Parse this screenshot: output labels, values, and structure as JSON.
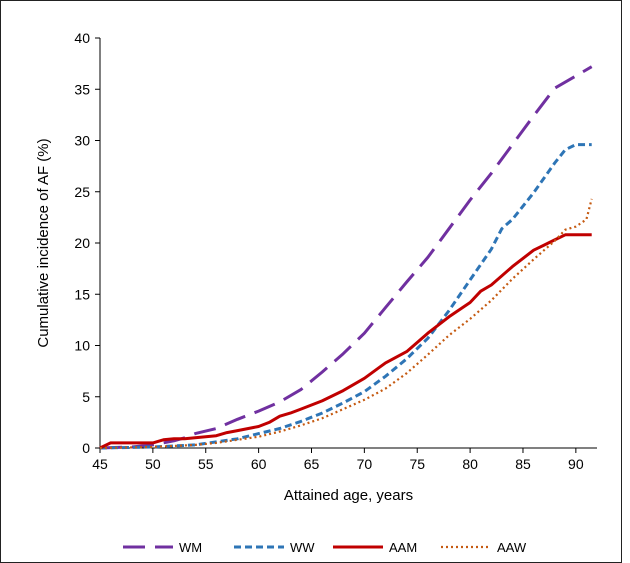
{
  "chart_data": {
    "type": "line",
    "xlabel": "Attained age, years",
    "ylabel": "Cumulative incidence of AF (%)",
    "xlim": [
      45,
      92
    ],
    "ylim": [
      0,
      40
    ],
    "xticks": [
      45,
      50,
      55,
      60,
      65,
      70,
      75,
      80,
      85,
      90
    ],
    "yticks": [
      0,
      5,
      10,
      15,
      20,
      25,
      30,
      35,
      40
    ],
    "grid": false,
    "legend_position": "bottom",
    "series": [
      {
        "name": "WM",
        "color": "#7030A0",
        "style": "long-dash",
        "x": [
          45,
          48,
          50,
          52,
          53,
          54,
          56,
          58,
          60,
          62,
          64,
          66,
          68,
          70,
          72,
          74,
          76,
          78,
          80,
          82,
          84,
          86,
          88,
          90,
          91.5
        ],
        "y": [
          0,
          0.1,
          0.3,
          0.7,
          1.0,
          1.4,
          1.9,
          2.8,
          3.6,
          4.5,
          5.7,
          7.4,
          9.2,
          11.2,
          13.7,
          16.2,
          18.6,
          21.4,
          24.2,
          26.8,
          29.6,
          32.4,
          35.1,
          36.3,
          37.2
        ]
      },
      {
        "name": "WW",
        "color": "#2E75B6",
        "style": "short-dash",
        "x": [
          45,
          50,
          54,
          56,
          58,
          60,
          62,
          64,
          66,
          68,
          70,
          72,
          74,
          76,
          78,
          80,
          82,
          83,
          84,
          86,
          88,
          89,
          90,
          91.5
        ],
        "y": [
          0,
          0.1,
          0.3,
          0.6,
          0.9,
          1.4,
          1.9,
          2.6,
          3.4,
          4.4,
          5.5,
          7.0,
          8.7,
          10.7,
          13.4,
          16.4,
          19.4,
          21.4,
          22.3,
          24.9,
          27.8,
          29.1,
          29.6,
          29.6
        ]
      },
      {
        "name": "AAM",
        "color": "#C00000",
        "style": "solid",
        "x": [
          45,
          46,
          48,
          49,
          50,
          51,
          52,
          53,
          55,
          56,
          57,
          58,
          60,
          61,
          62,
          63,
          64,
          66,
          68,
          70,
          72,
          74,
          76,
          78,
          80,
          81,
          82,
          84,
          86,
          87,
          88,
          89,
          90,
          91.5
        ],
        "y": [
          0,
          0.5,
          0.5,
          0.5,
          0.5,
          0.8,
          0.9,
          0.9,
          1.1,
          1.2,
          1.5,
          1.7,
          2.1,
          2.5,
          3.1,
          3.4,
          3.8,
          4.6,
          5.6,
          6.8,
          8.3,
          9.4,
          11.2,
          12.8,
          14.2,
          15.3,
          15.9,
          17.7,
          19.3,
          19.8,
          20.3,
          20.8,
          20.8,
          20.8
        ]
      },
      {
        "name": "AAW",
        "color": "#C55A11",
        "style": "dotted",
        "x": [
          45,
          50,
          54,
          56,
          58,
          60,
          62,
          64,
          66,
          68,
          70,
          72,
          74,
          76,
          78,
          80,
          82,
          84,
          86,
          88,
          89,
          90,
          91,
          91.5
        ],
        "y": [
          0,
          0.1,
          0.3,
          0.5,
          0.8,
          1.1,
          1.6,
          2.2,
          2.9,
          3.8,
          4.7,
          5.8,
          7.3,
          9.1,
          11.0,
          12.6,
          14.4,
          16.5,
          18.4,
          20.2,
          21.3,
          21.6,
          22.3,
          24.3
        ]
      }
    ]
  }
}
